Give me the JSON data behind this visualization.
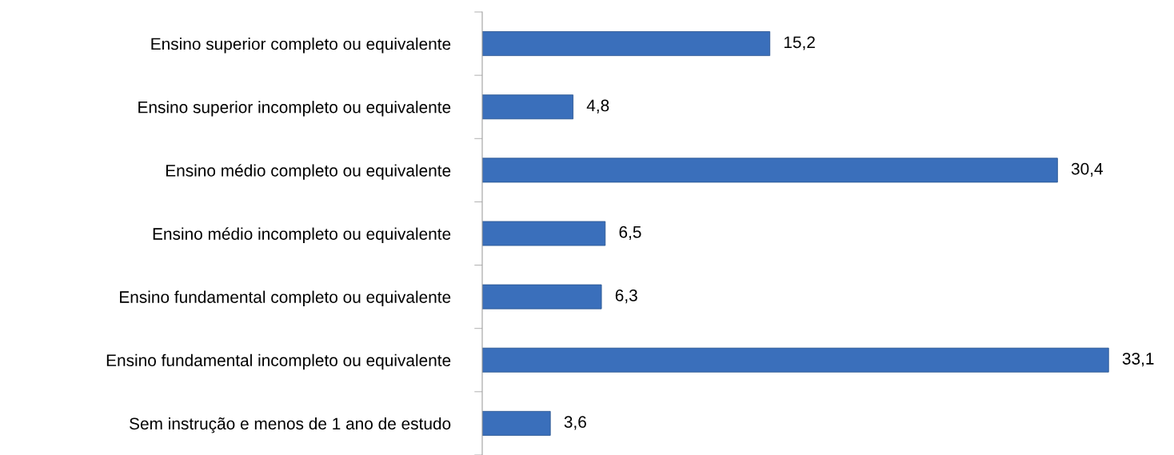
{
  "chart_data": {
    "type": "bar",
    "orientation": "horizontal",
    "categories": [
      "Ensino superior completo ou equivalente",
      "Ensino superior incompleto ou equivalente",
      "Ensino médio completo ou equivalente",
      "Ensino médio incompleto ou equivalente",
      "Ensino fundamental completo ou equivalente",
      "Ensino fundamental incompleto ou equivalente",
      "Sem instrução e menos de 1 ano de estudo"
    ],
    "values": [
      15.2,
      4.8,
      30.4,
      6.5,
      6.3,
      33.1,
      3.6
    ],
    "value_labels": [
      "15,2",
      "4,8",
      "30,4",
      "6,5",
      "6,3",
      "33,1",
      "3,6"
    ],
    "color": "#3a6fbb",
    "grid": false,
    "legend": false
  }
}
